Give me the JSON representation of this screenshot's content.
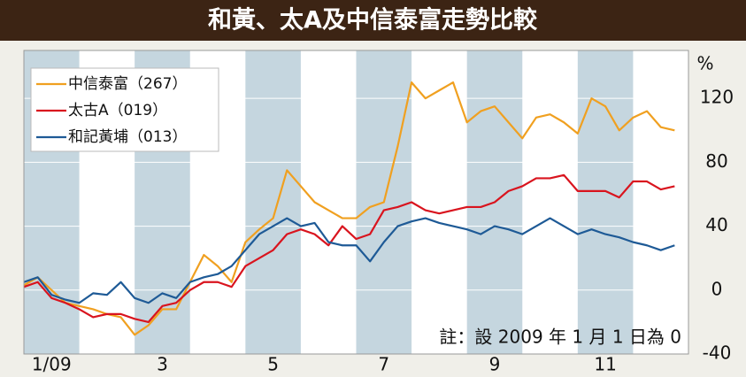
{
  "chart_data": {
    "type": "line",
    "title": "和黃、太A及中信泰富走勢比較",
    "y_label": "%",
    "annotation": "註：設 2009 年 1 月 1 日為 0",
    "x": [
      1,
      1.25,
      1.5,
      1.75,
      2,
      2.25,
      2.5,
      2.75,
      3,
      3.25,
      3.5,
      3.75,
      4,
      4.25,
      4.5,
      4.75,
      5,
      5.25,
      5.5,
      5.75,
      6,
      6.25,
      6.5,
      6.75,
      7,
      7.25,
      7.5,
      7.75,
      8,
      8.25,
      8.5,
      8.75,
      9,
      9.25,
      9.5,
      9.75,
      10,
      10.25,
      10.5,
      10.75,
      11,
      11.25,
      11.5,
      11.75,
      12,
      12.25,
      12.5,
      12.75
    ],
    "xlim": [
      1,
      13
    ],
    "xticks": [
      {
        "value": 1.5,
        "label": "1/09"
      },
      {
        "value": 3.5,
        "label": "3"
      },
      {
        "value": 5.5,
        "label": "5"
      },
      {
        "value": 7.5,
        "label": "7"
      },
      {
        "value": 9.5,
        "label": "9"
      },
      {
        "value": 11.5,
        "label": "11"
      }
    ],
    "ylim": [
      -40,
      150
    ],
    "yticks": [
      -40,
      0,
      40,
      80,
      120
    ],
    "grid": true,
    "legend": "upper left",
    "series": [
      {
        "name": "中信泰富（267）",
        "color": "#f0a020",
        "values": [
          3,
          8,
          0,
          -8,
          -10,
          -12,
          -15,
          -17,
          -28,
          -22,
          -12,
          -12,
          5,
          22,
          15,
          5,
          30,
          38,
          45,
          75,
          65,
          55,
          50,
          45,
          45,
          52,
          55,
          90,
          130,
          120,
          125,
          130,
          105,
          112,
          115,
          105,
          95,
          108,
          110,
          105,
          98,
          120,
          115,
          100,
          108,
          112,
          102,
          100
        ]
      },
      {
        "name": "太古A（019）",
        "color": "#d9141e",
        "values": [
          2,
          5,
          -5,
          -8,
          -12,
          -17,
          -15,
          -15,
          -18,
          -20,
          -10,
          -8,
          0,
          5,
          5,
          2,
          15,
          20,
          25,
          35,
          38,
          35,
          28,
          40,
          32,
          35,
          50,
          52,
          55,
          50,
          48,
          50,
          52,
          52,
          55,
          62,
          65,
          70,
          70,
          72,
          62,
          62,
          62,
          58,
          68,
          68,
          63,
          65
        ]
      },
      {
        "name": "和記黃埔（013）",
        "color": "#1e5a96",
        "values": [
          5,
          8,
          -3,
          -6,
          -8,
          -2,
          -3,
          5,
          -5,
          -8,
          -2,
          -5,
          5,
          8,
          10,
          15,
          25,
          35,
          40,
          45,
          40,
          42,
          30,
          28,
          28,
          18,
          30,
          40,
          43,
          45,
          42,
          40,
          38,
          35,
          40,
          38,
          35,
          40,
          45,
          40,
          35,
          38,
          35,
          33,
          30,
          28,
          25,
          28
        ]
      }
    ]
  }
}
